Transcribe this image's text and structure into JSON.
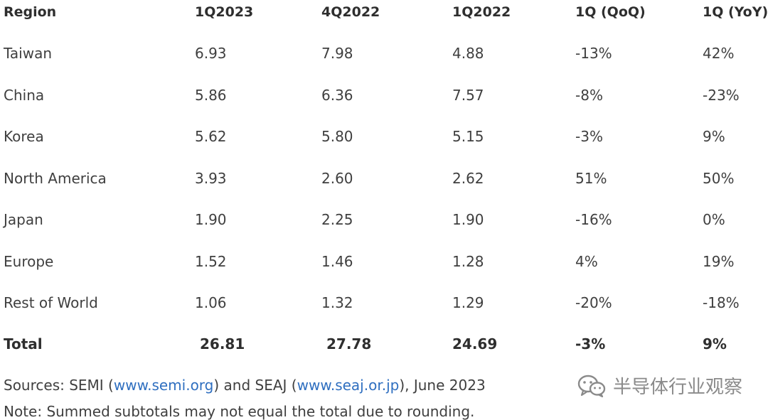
{
  "table": {
    "headers": [
      "Region",
      "1Q2023",
      "4Q2022",
      "1Q2022",
      "1Q (QoQ)",
      "1Q (YoY)"
    ],
    "rows": [
      [
        "Taiwan",
        "6.93",
        "7.98",
        "4.88",
        "-13%",
        "42%"
      ],
      [
        "China",
        "5.86",
        "6.36",
        "7.57",
        "-8%",
        "-23%"
      ],
      [
        "Korea",
        "5.62",
        "5.80",
        "5.15",
        "-3%",
        "9%"
      ],
      [
        "North America",
        "3.93",
        "2.60",
        "2.62",
        "51%",
        "50%"
      ],
      [
        "Japan",
        "1.90",
        "2.25",
        "1.90",
        "-16%",
        "0%"
      ],
      [
        "Europe",
        "1.52",
        "1.46",
        "1.28",
        "4%",
        "19%"
      ],
      [
        "Rest of World",
        "1.06",
        "1.32",
        "1.29",
        "-20%",
        "-18%"
      ]
    ],
    "total": [
      "Total",
      "26.81",
      "27.78",
      "24.69",
      "-3%",
      "9%"
    ]
  },
  "footer": {
    "sources_prefix": "Sources: SEMI (",
    "semi_link": "www.semi.org",
    "sources_mid": ") and SEAJ (",
    "seaj_link": "www.seaj.or.jp",
    "sources_suffix": "), June 2023",
    "note": "Note: Summed subtotals may not equal the total due to rounding."
  },
  "watermark": {
    "icon": "wechat-icon",
    "text": "半导体行业观察"
  }
}
